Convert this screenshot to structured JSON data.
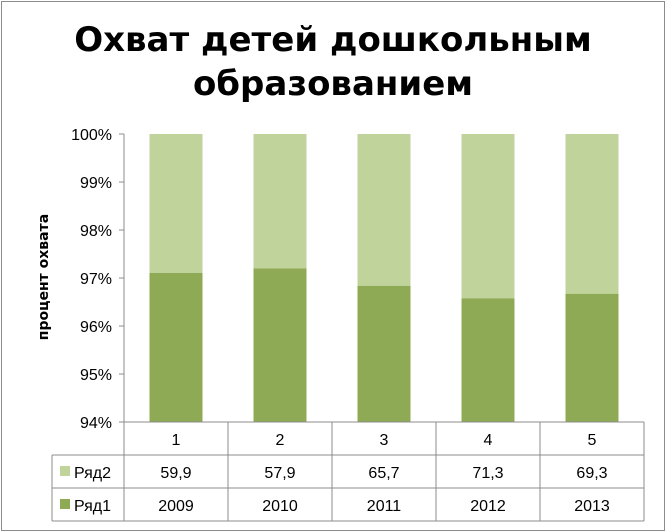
{
  "chart_data": {
    "type": "bar",
    "stacked": "percent",
    "title": "Охват детей дошкольным образованием",
    "ylabel": "процент охвата",
    "xlabel": "",
    "ylim": [
      0.94,
      1.0
    ],
    "y_ticks": [
      "94%",
      "95%",
      "96%",
      "97%",
      "98%",
      "99%",
      "100%"
    ],
    "categories": [
      "1",
      "2",
      "3",
      "4",
      "5"
    ],
    "series": [
      {
        "name": "Ряд1",
        "values": [
          2009,
          2010,
          2011,
          2012,
          2013
        ],
        "color": "#8faa54"
      },
      {
        "name": "Ряд2",
        "values": [
          59.9,
          57.9,
          65.7,
          71.3,
          69.3
        ],
        "color": "#bfd39b"
      }
    ],
    "data_table": {
      "rows": [
        {
          "label": "Ряд2",
          "cells": [
            "59,9",
            "57,9",
            "65,7",
            "71,3",
            "69,3"
          ]
        },
        {
          "label": "Ряд1",
          "cells": [
            "2009",
            "2010",
            "2011",
            "2012",
            "2013"
          ]
        }
      ]
    },
    "grid": false,
    "legend": "data-table"
  }
}
